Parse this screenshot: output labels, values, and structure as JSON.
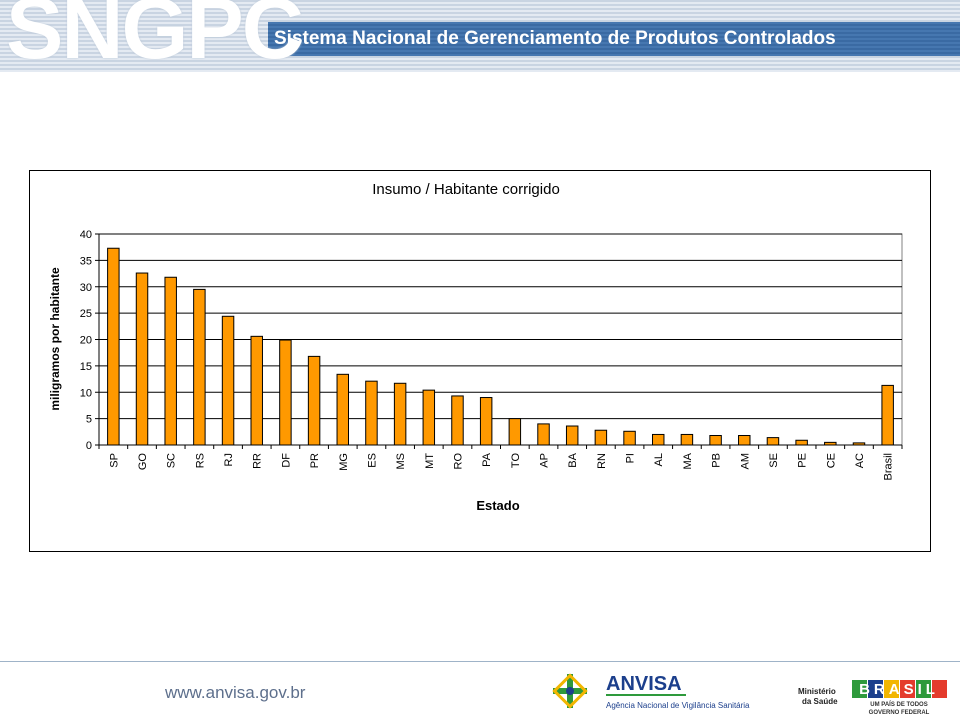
{
  "header": {
    "logo": "SNGPC",
    "title": "Sistema Nacional de Gerenciamento de Produtos Controlados"
  },
  "footer": {
    "website": "www.anvisa.gov.br",
    "anvisa_name": "ANVISA",
    "anvisa_subtitle": "Agência Nacional de Vigilância Sanitária",
    "ministerio_line1": "Ministério",
    "ministerio_line2": "da Saúde",
    "brasil": "BRASIL",
    "brasil_slogan": "UM PAÍS DE TODOS",
    "brasil_gov": "GOVERNO FEDERAL"
  },
  "colors": {
    "bar_fill": "#ff9900",
    "header_blue": "#3c6ea8",
    "footer_text": "#5d6f8c",
    "anvisa_blue": "#1c3f8c",
    "anvisa_green": "#2e9a3c"
  },
  "chart_data": {
    "type": "bar",
    "title": "Insumo / Habitante corrigido",
    "xlabel": "Estado",
    "ylabel": "miligramos por habitante",
    "ylim": [
      0,
      40
    ],
    "yticks": [
      0,
      5,
      10,
      15,
      20,
      25,
      30,
      35,
      40
    ],
    "grid": true,
    "legend": "none",
    "categories": [
      "SP",
      "GO",
      "SC",
      "RS",
      "RJ",
      "RR",
      "DF",
      "PR",
      "MG",
      "ES",
      "MS",
      "MT",
      "RO",
      "PA",
      "TO",
      "AP",
      "BA",
      "RN",
      "PI",
      "AL",
      "MA",
      "PB",
      "AM",
      "SE",
      "PE",
      "CE",
      "AC",
      "Brasil"
    ],
    "values": [
      37.3,
      32.6,
      31.8,
      29.5,
      24.4,
      20.6,
      19.9,
      16.8,
      13.4,
      12.1,
      11.7,
      10.4,
      9.3,
      9.0,
      5.0,
      4.0,
      3.6,
      2.8,
      2.6,
      2.0,
      2.0,
      1.8,
      1.8,
      1.4,
      0.9,
      0.5,
      0.4,
      11.3
    ]
  }
}
